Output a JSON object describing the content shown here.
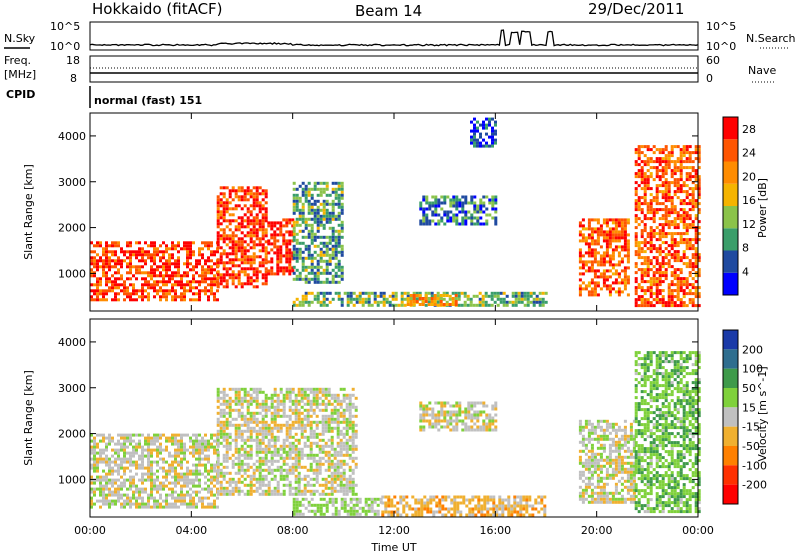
{
  "header": {
    "station": "Hokkaido (fitACF)",
    "beam": "Beam 14",
    "date": "29/Dec/2011"
  },
  "noise_panel": {
    "left_label": "N.Sky",
    "right_label": "N.Search",
    "left_ticks": [
      "10^5",
      "10^0"
    ],
    "right_ticks": [
      "10^5",
      "10^0"
    ]
  },
  "freq_panel": {
    "left_label_line1": "Freq.",
    "left_label_line2": "[MHz]",
    "right_label": "Nave",
    "left_ticks": [
      "18",
      "8"
    ],
    "right_ticks": [
      "60",
      "0"
    ]
  },
  "cpid_panel": {
    "label": "CPID",
    "mode_text": "normal (fast) 151"
  },
  "colors": {
    "power_scale": [
      "#0000ff",
      "#1f4aa0",
      "#3a9e6a",
      "#8bc34a",
      "#f5b400",
      "#ff8c00",
      "#ff5500",
      "#ff0000"
    ],
    "velocity_scale": [
      "#1a3aa8",
      "#2f6e8f",
      "#3e9a4a",
      "#7fd13b",
      "#c0c0c0",
      "#f0b030",
      "#ff8000",
      "#ff3000",
      "#ff0000"
    ]
  },
  "chart_data": [
    {
      "type": "heatmap",
      "title": "",
      "xlabel": "",
      "ylabel": "Slant Range [km]",
      "xlim": [
        "00:00",
        "24:00"
      ],
      "ylim": [
        180,
        4500
      ],
      "x_ticks": [
        "00:00",
        "04:00",
        "08:00",
        "12:00",
        "16:00",
        "20:00",
        "00:00"
      ],
      "y_ticks": [
        1000,
        2000,
        3000,
        4000
      ],
      "colorbar": {
        "label": "Power [dB]",
        "ticks": [
          4,
          8,
          12,
          16,
          20,
          24,
          28
        ],
        "range": [
          0,
          30
        ]
      },
      "regions": [
        {
          "t_start": 0.0,
          "t_end": 5.0,
          "r_min": 400,
          "r_max": 1700,
          "value": 26
        },
        {
          "t_start": 5.0,
          "t_end": 7.0,
          "r_min": 700,
          "r_max": 2900,
          "value": 26
        },
        {
          "t_start": 7.0,
          "t_end": 8.0,
          "r_min": 1000,
          "r_max": 2200,
          "value": 28
        },
        {
          "t_start": 8.0,
          "t_end": 10.0,
          "r_min": 800,
          "r_max": 3000,
          "value": 10
        },
        {
          "t_start": 8.0,
          "t_end": 18.0,
          "r_min": 300,
          "r_max": 600,
          "value": 12
        },
        {
          "t_start": 12.5,
          "t_end": 14.5,
          "r_min": 300,
          "r_max": 550,
          "value": 20
        },
        {
          "t_start": 13.0,
          "t_end": 16.0,
          "r_min": 2100,
          "r_max": 2700,
          "value": 8
        },
        {
          "t_start": 15.0,
          "t_end": 16.0,
          "r_min": 3800,
          "r_max": 4400,
          "value": 4
        },
        {
          "t_start": 19.3,
          "t_end": 21.3,
          "r_min": 500,
          "r_max": 2200,
          "value": 24
        },
        {
          "t_start": 21.5,
          "t_end": 24.0,
          "r_min": 300,
          "r_max": 3800,
          "value": 24
        }
      ]
    },
    {
      "type": "heatmap",
      "title": "",
      "xlabel": "Time UT",
      "ylabel": "Slant Range [km]",
      "xlim": [
        "00:00",
        "24:00"
      ],
      "ylim": [
        180,
        4500
      ],
      "x_ticks": [
        "00:00",
        "04:00",
        "08:00",
        "12:00",
        "16:00",
        "20:00",
        "00:00"
      ],
      "y_ticks": [
        1000,
        2000,
        3000,
        4000
      ],
      "colorbar": {
        "label": "Velocity [m s^-1]",
        "ticks": [
          200,
          100,
          50,
          15,
          -15,
          -50,
          -100,
          -200
        ],
        "range": [
          -250,
          250
        ]
      },
      "regions": [
        {
          "t_start": 0.0,
          "t_end": 5.0,
          "r_min": 400,
          "r_max": 2000,
          "value": 0
        },
        {
          "t_start": 5.0,
          "t_end": 10.5,
          "r_min": 700,
          "r_max": 3000,
          "value": 0
        },
        {
          "t_start": 8.0,
          "t_end": 11.5,
          "r_min": 250,
          "r_max": 600,
          "value": 20
        },
        {
          "t_start": 11.5,
          "t_end": 18.0,
          "r_min": 250,
          "r_max": 650,
          "value": -30
        },
        {
          "t_start": 13.0,
          "t_end": 16.0,
          "r_min": 2100,
          "r_max": 2700,
          "value": 0
        },
        {
          "t_start": 19.3,
          "t_end": 21.5,
          "r_min": 500,
          "r_max": 2300,
          "value": 0
        },
        {
          "t_start": 21.5,
          "t_end": 24.0,
          "r_min": 300,
          "r_max": 3800,
          "value": 40
        }
      ]
    }
  ]
}
